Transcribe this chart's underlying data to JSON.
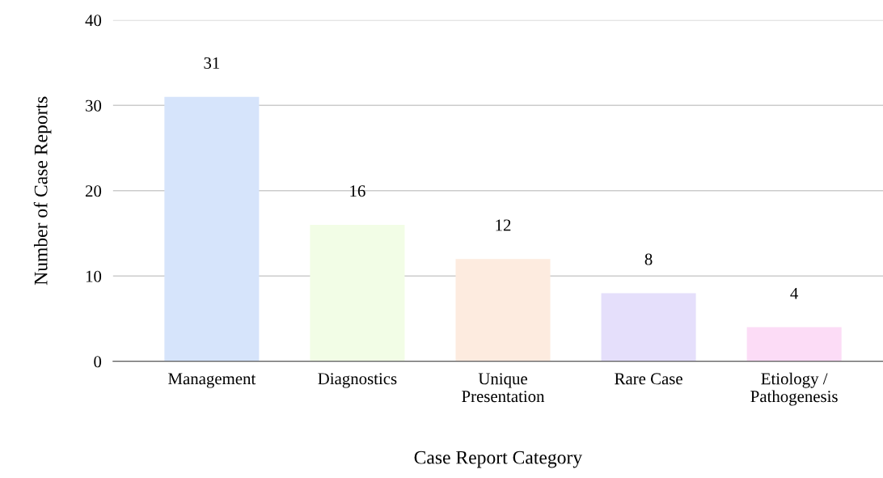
{
  "chart_data": {
    "type": "bar",
    "xlabel": "Case Report Category",
    "ylabel": "Number of Case Reports",
    "categories": [
      "Management",
      "Diagnostics",
      "Unique\nPresentation",
      "Rare Case",
      "Etiology /\nPathogenesis"
    ],
    "values": [
      31,
      16,
      12,
      8,
      4
    ],
    "colors": [
      "#d6e4fb",
      "#f2fde6",
      "#fdebdf",
      "#e5dffb",
      "#fcdcf6"
    ],
    "ylim": [
      0,
      40
    ],
    "yticks": [
      0,
      10,
      20,
      30,
      40
    ],
    "grid": "y",
    "data_labels": true,
    "legend": false
  }
}
